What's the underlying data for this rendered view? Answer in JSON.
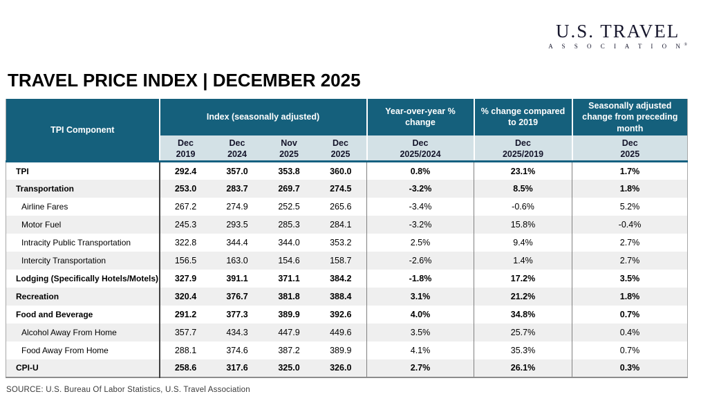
{
  "logo": {
    "line1": "U.S. TRAVEL",
    "line2": "A S S O C I A T I O N",
    "reg": "®"
  },
  "title": "TRAVEL PRICE INDEX  | DECEMBER 2025",
  "source": "SOURCE: U.S. Bureau Of Labor Statistics, U.S. Travel Association",
  "colors": {
    "header_teal": "#15607c",
    "subheader_bg": "#d3e1e6",
    "row_stripe": "#efefef",
    "header_border_teal": "#136080"
  },
  "table": {
    "component_header": "TPI Component",
    "group_headers": {
      "index": "Index  (seasonally adjusted)",
      "yoy": "Year-over-year % change",
      "vs2019": "% change compared to 2019",
      "mom": "Seasonally adjusted change from preceding month"
    },
    "sub_headers": [
      {
        "line1": "Dec",
        "line2": "2019"
      },
      {
        "line1": "Dec",
        "line2": "2024"
      },
      {
        "line1": "Nov",
        "line2": "2025"
      },
      {
        "line1": "Dec",
        "line2": "2025"
      },
      {
        "line1": "Dec",
        "line2": "2025/2024"
      },
      {
        "line1": "Dec",
        "line2": "2025/2019"
      },
      {
        "line1": "Dec",
        "line2": "2025"
      }
    ],
    "rows": [
      {
        "component": "TPI",
        "bold": true,
        "values": [
          "292.4",
          "357.0",
          "353.8",
          "360.0",
          "0.8%",
          "23.1%",
          "1.7%"
        ]
      },
      {
        "component": "Transportation",
        "bold": true,
        "values": [
          "253.0",
          "283.7",
          "269.7",
          "274.5",
          "-3.2%",
          "8.5%",
          "1.8%"
        ]
      },
      {
        "component": "Airline Fares",
        "bold": false,
        "values": [
          "267.2",
          "274.9",
          "252.5",
          "265.6",
          "-3.4%",
          "-0.6%",
          "5.2%"
        ]
      },
      {
        "component": "Motor Fuel",
        "bold": false,
        "values": [
          "245.3",
          "293.5",
          "285.3",
          "284.1",
          "-3.2%",
          "15.8%",
          "-0.4%"
        ]
      },
      {
        "component": "Intracity Public Transportation",
        "bold": false,
        "values": [
          "322.8",
          "344.4",
          "344.0",
          "353.2",
          "2.5%",
          "9.4%",
          "2.7%"
        ]
      },
      {
        "component": "Intercity Transportation",
        "bold": false,
        "values": [
          "156.5",
          "163.0",
          "154.6",
          "158.7",
          "-2.6%",
          "1.4%",
          "2.7%"
        ]
      },
      {
        "component": "Lodging (Specifically Hotels/Motels)",
        "bold": true,
        "values": [
          "327.9",
          "391.1",
          "371.1",
          "384.2",
          "-1.8%",
          "17.2%",
          "3.5%"
        ]
      },
      {
        "component": "Recreation",
        "bold": true,
        "values": [
          "320.4",
          "376.7",
          "381.8",
          "388.4",
          "3.1%",
          "21.2%",
          "1.8%"
        ]
      },
      {
        "component": "Food and Beverage",
        "bold": true,
        "values": [
          "291.2",
          "377.3",
          "389.9",
          "392.6",
          "4.0%",
          "34.8%",
          "0.7%"
        ]
      },
      {
        "component": "Alcohol Away From Home",
        "bold": false,
        "values": [
          "357.7",
          "434.3",
          "447.9",
          "449.6",
          "3.5%",
          "25.7%",
          "0.4%"
        ]
      },
      {
        "component": "Food Away From Home",
        "bold": false,
        "values": [
          "288.1",
          "374.6",
          "387.2",
          "389.9",
          "4.1%",
          "35.3%",
          "0.7%"
        ]
      },
      {
        "component": "CPI-U",
        "bold": true,
        "values": [
          "258.6",
          "317.6",
          "325.0",
          "326.0",
          "2.7%",
          "26.1%",
          "0.3%"
        ]
      }
    ]
  },
  "chart_data": {
    "type": "table",
    "title": "TRAVEL PRICE INDEX | DECEMBER 2025",
    "columns": [
      "TPI Component",
      "Index (seasonally adjusted) — Dec 2019",
      "Index (seasonally adjusted) — Dec 2024",
      "Index (seasonally adjusted) — Nov 2025",
      "Index (seasonally adjusted) — Dec 2025",
      "Year-over-year % change — Dec 2025/2024",
      "% change compared to 2019 — Dec 2025/2019",
      "Seasonally adjusted change from preceding month — Dec 2025"
    ],
    "rows": [
      [
        "TPI",
        292.4,
        357.0,
        353.8,
        360.0,
        "0.8%",
        "23.1%",
        "1.7%"
      ],
      [
        "Transportation",
        253.0,
        283.7,
        269.7,
        274.5,
        "-3.2%",
        "8.5%",
        "1.8%"
      ],
      [
        "Airline Fares",
        267.2,
        274.9,
        252.5,
        265.6,
        "-3.4%",
        "-0.6%",
        "5.2%"
      ],
      [
        "Motor Fuel",
        245.3,
        293.5,
        285.3,
        284.1,
        "-3.2%",
        "15.8%",
        "-0.4%"
      ],
      [
        "Intracity Public Transportation",
        322.8,
        344.4,
        344.0,
        353.2,
        "2.5%",
        "9.4%",
        "2.7%"
      ],
      [
        "Intercity Transportation",
        156.5,
        163.0,
        154.6,
        158.7,
        "-2.6%",
        "1.4%",
        "2.7%"
      ],
      [
        "Lodging (Specifically Hotels/Motels)",
        327.9,
        391.1,
        371.1,
        384.2,
        "-1.8%",
        "17.2%",
        "3.5%"
      ],
      [
        "Recreation",
        320.4,
        376.7,
        381.8,
        388.4,
        "3.1%",
        "21.2%",
        "1.8%"
      ],
      [
        "Food and Beverage",
        291.2,
        377.3,
        389.9,
        392.6,
        "4.0%",
        "34.8%",
        "0.7%"
      ],
      [
        "Alcohol Away From Home",
        357.7,
        434.3,
        447.9,
        449.6,
        "3.5%",
        "25.7%",
        "0.4%"
      ],
      [
        "Food Away From Home",
        288.1,
        374.6,
        387.2,
        389.9,
        "4.1%",
        "35.3%",
        "0.7%"
      ],
      [
        "CPI-U",
        258.6,
        317.6,
        325.0,
        326.0,
        "2.7%",
        "26.1%",
        "0.3%"
      ]
    ],
    "source": "U.S. Bureau Of Labor Statistics, U.S. Travel Association"
  }
}
